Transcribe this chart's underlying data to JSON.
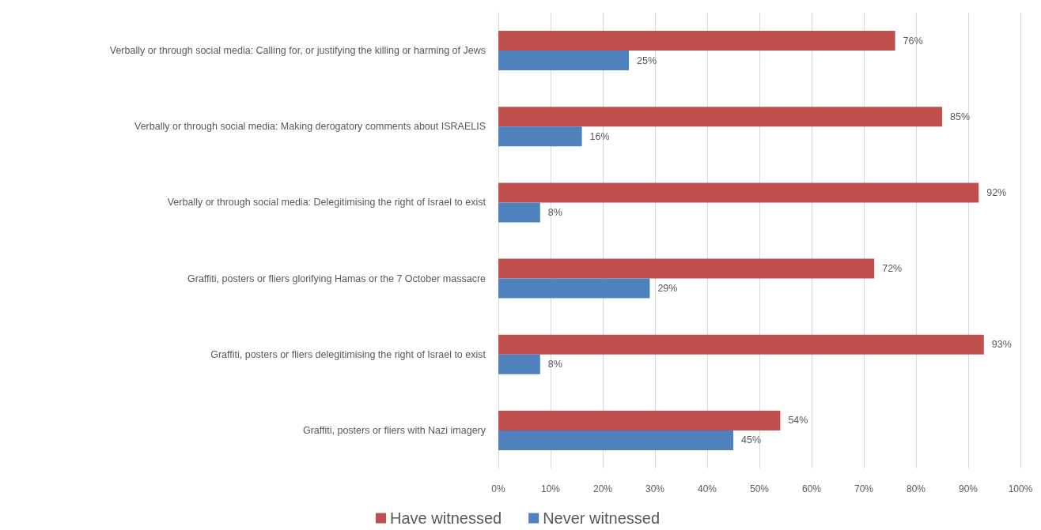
{
  "chart_data": {
    "type": "bar",
    "orientation": "horizontal",
    "categories": [
      "Verbally or through social media: Calling for, or justifying the killing or harming of Jews",
      "Verbally or through social media: Making derogatory comments about ISRAELIS",
      "Verbally or through social media: Delegitimising the right of Israel to exist",
      "Graffiti, posters or fliers glorifying Hamas or the 7 October massacre",
      "Graffiti, posters or fliers delegitimising the right of Israel to exist",
      "Graffiti, posters or fliers with Nazi imagery"
    ],
    "series": [
      {
        "name": "Have witnessed",
        "color": "#c0504d",
        "values": [
          76,
          85,
          92,
          72,
          93,
          54
        ],
        "value_labels": [
          "76%",
          "85%",
          "92%",
          "72%",
          "93%",
          "54%"
        ]
      },
      {
        "name": "Never witnessed",
        "color": "#4f81bd",
        "values": [
          25,
          16,
          8,
          29,
          8,
          45
        ],
        "value_labels": [
          "25%",
          "16%",
          "8%",
          "29%",
          "8%",
          "45%"
        ]
      }
    ],
    "xlim": [
      0,
      100
    ],
    "xticks": [
      {
        "value": 0,
        "label": "0%"
      },
      {
        "value": 10,
        "label": "10%"
      },
      {
        "value": 20,
        "label": "20%"
      },
      {
        "value": 30,
        "label": "30%"
      },
      {
        "value": 40,
        "label": "40%"
      },
      {
        "value": 50,
        "label": "50%"
      },
      {
        "value": 60,
        "label": "60%"
      },
      {
        "value": 70,
        "label": "70%"
      },
      {
        "value": 80,
        "label": "80%"
      },
      {
        "value": 90,
        "label": "90%"
      },
      {
        "value": 100,
        "label": "100%"
      }
    ],
    "grid": "x",
    "legend": "bottom"
  }
}
